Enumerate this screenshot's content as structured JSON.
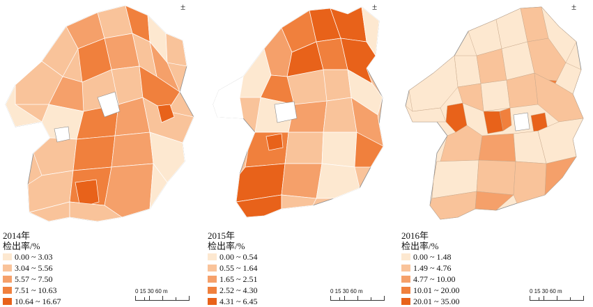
{
  "colors": {
    "class1": "#fde8d0",
    "class2": "#f9c39a",
    "class3": "#f5a06a",
    "class4": "#f0803d",
    "class5": "#e8621a",
    "outside": "#ffffff",
    "border": "#8a8a8a"
  },
  "icons": {
    "north": "north-arrow-icon"
  },
  "scalebar": {
    "label": "0  15 30      60 m"
  },
  "panels": [
    {
      "year_label": "2014年",
      "legend_title": "检出率/%",
      "classes": [
        "0.00 ~ 3.03",
        "3.04 ~ 5.56",
        "5.57 ~ 7.50",
        "7.51 ~ 10.63",
        "10.64 ~ 16.67"
      ]
    },
    {
      "year_label": "2015年",
      "legend_title": "检出率/%",
      "classes": [
        "0.00 ~ 0.54",
        "0.55 ~ 1.64",
        "1.65 ~ 2.51",
        "2.52 ~ 4.30",
        "4.31 ~ 6.45"
      ]
    },
    {
      "year_label": "2016年",
      "legend_title": "检出率/%",
      "classes": [
        "0.00 ~ 1.48",
        "1.49 ~ 4.76",
        "4.77 ~ 10.00",
        "10.01 ~ 20.00",
        "20.01 ~ 35.00"
      ]
    }
  ]
}
